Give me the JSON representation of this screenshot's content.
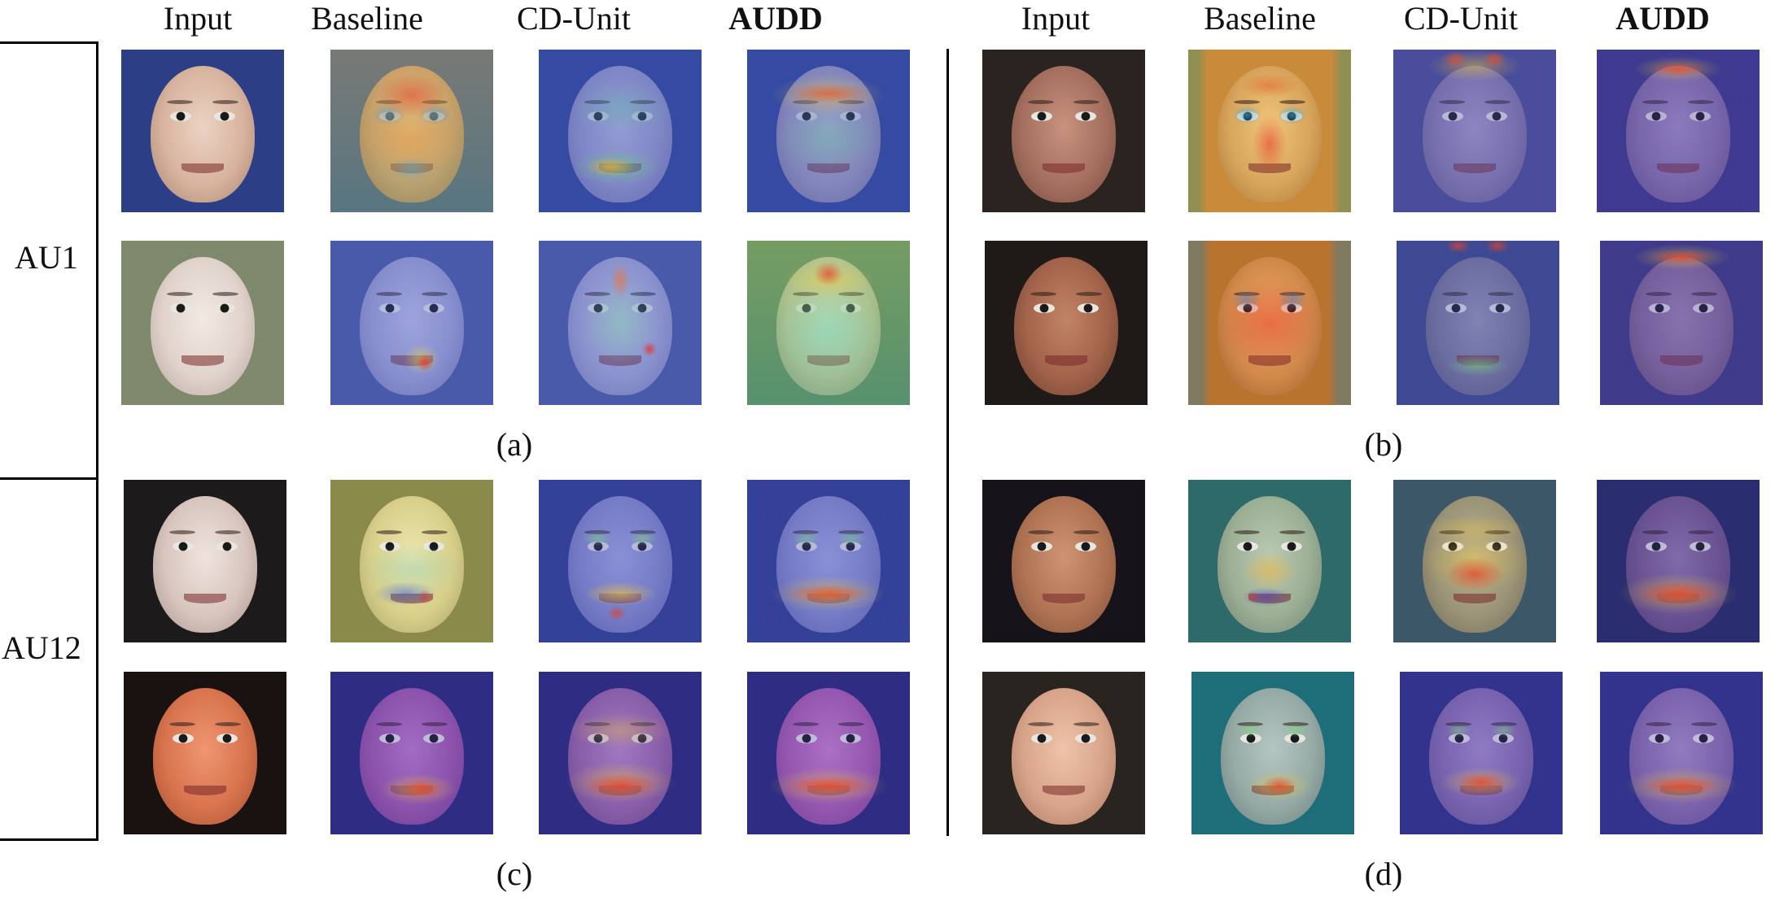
{
  "columns": {
    "left": [
      "Input",
      "Baseline",
      "CD-Unit",
      "AUDD"
    ],
    "right": [
      "Input",
      "Baseline",
      "CD-Unit",
      "AUDD"
    ]
  },
  "row_labels": {
    "au1": "AU1",
    "au12": "AU12"
  },
  "panel_captions": {
    "a": "(a)",
    "b": "(b)",
    "c": "(c)",
    "d": "(d)"
  },
  "images": [
    {
      "panel": "a",
      "row": 1,
      "column": "Input",
      "kind": "face photo"
    },
    {
      "panel": "a",
      "row": 1,
      "column": "Baseline",
      "kind": "heatmap overlay"
    },
    {
      "panel": "a",
      "row": 1,
      "column": "CD-Unit",
      "kind": "heatmap overlay"
    },
    {
      "panel": "a",
      "row": 1,
      "column": "AUDD",
      "kind": "heatmap overlay"
    },
    {
      "panel": "a",
      "row": 2,
      "column": "Input",
      "kind": "face photo"
    },
    {
      "panel": "a",
      "row": 2,
      "column": "Baseline",
      "kind": "heatmap overlay"
    },
    {
      "panel": "a",
      "row": 2,
      "column": "CD-Unit",
      "kind": "heatmap overlay"
    },
    {
      "panel": "a",
      "row": 2,
      "column": "AUDD",
      "kind": "heatmap overlay"
    }
  ]
}
